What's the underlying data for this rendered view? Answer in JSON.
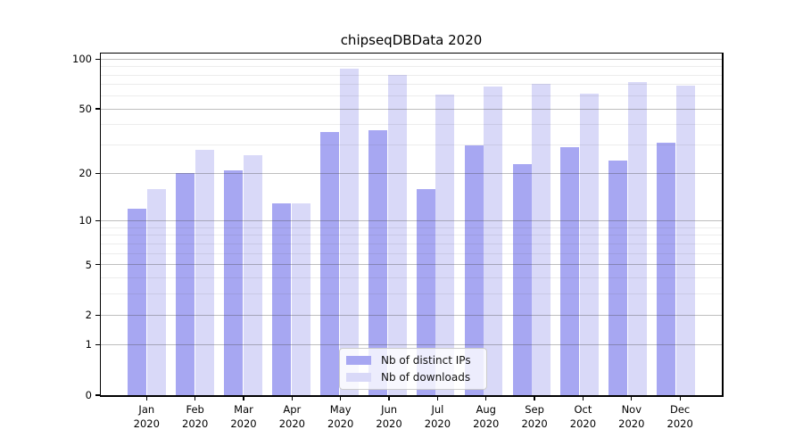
{
  "title": "chipseqDBData 2020",
  "background_color": "#ffffff",
  "axis_color": "#000000",
  "chart_data": {
    "type": "bar",
    "title": "chipseqDBData 2020",
    "categories": [
      "Jan 2020",
      "Feb 2020",
      "Mar 2020",
      "Apr 2020",
      "May 2020",
      "Jun 2020",
      "Jul 2020",
      "Aug 2020",
      "Sep 2020",
      "Oct 2020",
      "Nov 2020",
      "Dec 2020"
    ],
    "series": [
      {
        "name": "Nb of distinct IPs",
        "color": "#a7a7f2",
        "values": [
          12,
          20,
          21,
          13,
          36,
          37,
          16,
          30,
          23,
          29,
          24,
          31
        ]
      },
      {
        "name": "Nb of downloads",
        "color": "#d9d9f8",
        "values": [
          16,
          28,
          26,
          13,
          87,
          80,
          61,
          68,
          71,
          62,
          73,
          69
        ]
      }
    ],
    "xlabel": "",
    "ylabel": "",
    "yscale": "log1p",
    "ylim": [
      0,
      108
    ],
    "y_ticks": [
      0,
      1,
      2,
      5,
      10,
      20,
      50,
      100
    ],
    "y_minor_ticks": [
      3,
      4,
      6,
      7,
      8,
      9,
      30,
      40,
      60,
      70,
      80,
      90
    ],
    "grid": true,
    "legend_position": "lower-center"
  }
}
